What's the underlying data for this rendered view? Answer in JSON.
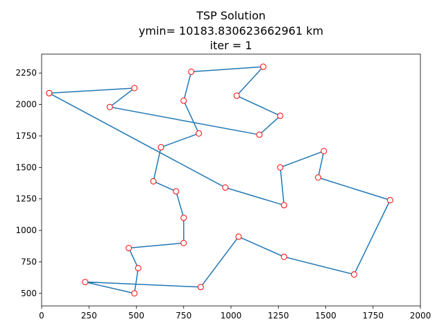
{
  "chart_data": {
    "type": "line",
    "title_lines": [
      "TSP Solution",
      "ymin= 10183.830623662961 km",
      "iter = 1"
    ],
    "xlabel": "",
    "ylabel": "",
    "xlim": [
      0,
      2000
    ],
    "ylim": [
      400,
      2400
    ],
    "xticks": [
      0,
      250,
      500,
      750,
      1000,
      1250,
      1500,
      1750,
      2000
    ],
    "yticks": [
      500,
      750,
      1000,
      1250,
      1500,
      1750,
      2000,
      2250
    ],
    "grid": false,
    "line_color": "#1f77b4",
    "marker_edge_color": "#ff0000",
    "marker_face_color": "#ffffff",
    "series": [
      {
        "x": [
          40,
          490,
          360,
          1150,
          1260,
          1030,
          1170,
          790,
          750,
          830,
          630,
          590,
          710,
          750,
          750,
          460,
          510,
          490,
          230,
          840,
          1040,
          1280,
          1650,
          1840,
          1460,
          1490,
          1260,
          1280,
          970,
          40
        ],
        "y": [
          2090,
          2130,
          1980,
          1760,
          1910,
          2070,
          2300,
          2260,
          2030,
          1770,
          1660,
          1390,
          1310,
          1100,
          900,
          860,
          700,
          500,
          590,
          550,
          950,
          790,
          650,
          1240,
          1420,
          1630,
          1500,
          1200,
          1340,
          2090
        ]
      }
    ]
  }
}
